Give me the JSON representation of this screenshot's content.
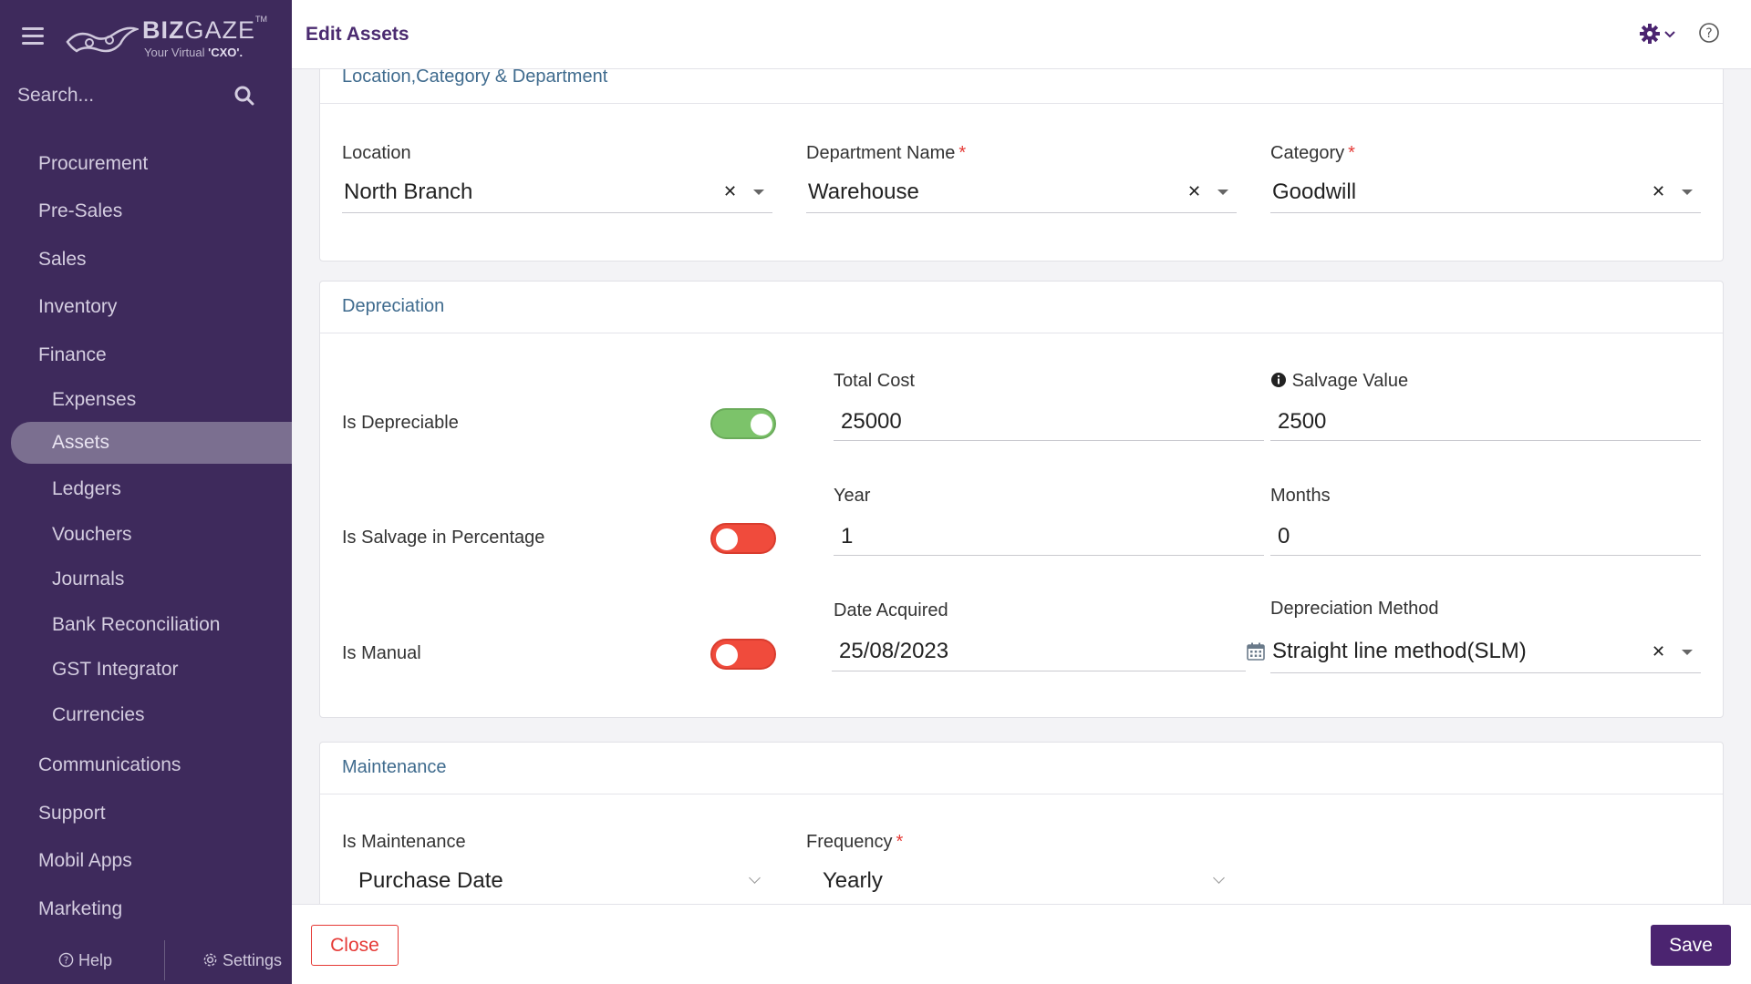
{
  "brand": {
    "name_bold": "BIZ",
    "name_rest": "GAZE",
    "tm": "TM",
    "tagline_prefix": "Your Virtual ",
    "tagline_bold": "'CXO'."
  },
  "sidebar": {
    "search_placeholder": "Search...",
    "items": [
      {
        "label": "Procurement"
      },
      {
        "label": "Pre-Sales"
      },
      {
        "label": "Sales"
      },
      {
        "label": "Inventory"
      },
      {
        "label": "Finance"
      },
      {
        "label": "Expenses"
      },
      {
        "label": "Assets"
      },
      {
        "label": "Ledgers"
      },
      {
        "label": "Vouchers"
      },
      {
        "label": "Journals"
      },
      {
        "label": "Bank Reconciliation"
      },
      {
        "label": "GST Integrator"
      },
      {
        "label": "Currencies"
      },
      {
        "label": "Communications"
      },
      {
        "label": "Support"
      },
      {
        "label": "Mobil Apps"
      },
      {
        "label": "Marketing"
      }
    ],
    "help_label": "Help",
    "settings_label": "Settings"
  },
  "header": {
    "title": "Edit Assets"
  },
  "sections": {
    "location": {
      "title": "Location,Category & Department",
      "location_label": "Location",
      "location_value": "North Branch",
      "department_label": "Department Name",
      "department_value": "Warehouse",
      "category_label": "Category",
      "category_value": "Goodwill",
      "required_mark": "*"
    },
    "depreciation": {
      "title": "Depreciation",
      "is_depreciable_label": "Is Depreciable",
      "is_depreciable": true,
      "is_salvage_pct_label": "Is Salvage in Percentage",
      "is_salvage_pct": false,
      "is_manual_label": "Is Manual",
      "is_manual": false,
      "total_cost_label": "Total Cost",
      "total_cost_value": "25000",
      "salvage_label": "Salvage Value",
      "salvage_value": "2500",
      "year_label": "Year",
      "year_value": "1",
      "months_label": "Months",
      "months_value": "0",
      "date_label": "Date Acquired",
      "date_value": "25/08/2023",
      "method_label": "Depreciation Method",
      "method_value": "Straight line method(SLM)"
    },
    "maintenance": {
      "title": "Maintenance",
      "is_maintenance_label": "Is Maintenance",
      "is_maintenance_value": "Purchase Date",
      "frequency_label": "Frequency",
      "frequency_value": "Yearly",
      "required_mark": "*"
    }
  },
  "footer": {
    "close_label": "Close",
    "save_label": "Save"
  },
  "colors": {
    "sidebar_bg": "#3e2a5c",
    "accent": "#4b2470",
    "toggle_on": "#7cc36a",
    "toggle_off": "#f04b3c",
    "danger": "#e53935",
    "section_title": "#3f6b8e"
  }
}
